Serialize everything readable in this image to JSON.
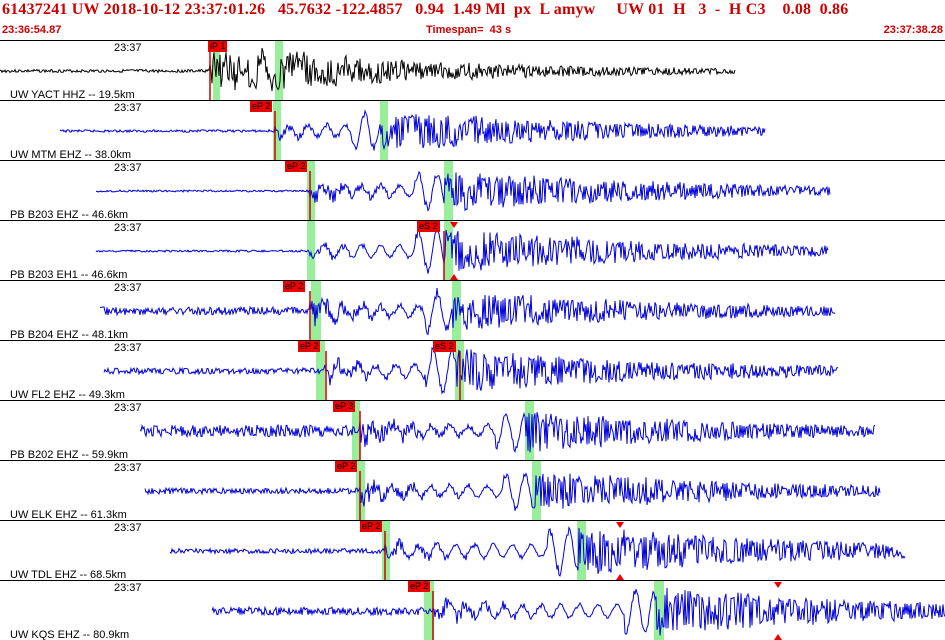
{
  "header": {
    "title": "61437241 UW 2018-10-12 23:37:01.26   45.7632 -122.4857   0.94  1.49 Ml  px  L amyw     UW 01  H   3  -  H C3    0.08  0.86",
    "start_time": "23:36:54.87",
    "timespan": "Timespan=  43 s",
    "end_time": "23:37:38.28"
  },
  "colors": {
    "header_text": "#cc0000",
    "trace_first": "#000000",
    "trace": "#0000dd",
    "pick_box": "#ee0000",
    "pick_line": "#cc0000",
    "window_shade": "#99ee99"
  },
  "traces": [
    {
      "time": "23:37",
      "label": "UW YACT HHZ -- 19.5km",
      "color": "black",
      "picks": [
        {
          "label": "iP 1"
        }
      ]
    },
    {
      "time": "23:37",
      "label": "UW MTM EHZ -- 38.0km",
      "color": "blue",
      "picks": [
        {
          "label": "eP 2"
        }
      ]
    },
    {
      "time": "23:37",
      "label": "PB B203 EHZ -- 46.6km",
      "color": "blue",
      "picks": [
        {
          "label": "eP 2"
        }
      ]
    },
    {
      "time": "23:37",
      "label": "PB B203 EH1 -- 46.6km",
      "color": "blue",
      "picks": [
        {
          "label": "eS 2"
        }
      ]
    },
    {
      "time": "23:37",
      "label": "PB B204 EHZ -- 48.1km",
      "color": "blue",
      "picks": [
        {
          "label": "eP 2"
        }
      ]
    },
    {
      "time": "23:37",
      "label": "UW FL2 EHZ -- 49.3km",
      "color": "blue",
      "picks": [
        {
          "label": "eP 2"
        },
        {
          "label": "eS 2"
        }
      ]
    },
    {
      "time": "23:37",
      "label": "PB B202 EHZ -- 59.9km",
      "color": "blue",
      "picks": [
        {
          "label": "eP 3"
        }
      ]
    },
    {
      "time": "23:37",
      "label": "UW ELK EHZ -- 61.3km",
      "color": "blue",
      "picks": [
        {
          "label": "eP 2"
        }
      ]
    },
    {
      "time": "23:37",
      "label": "UW TDL EHZ -- 68.5km",
      "color": "blue",
      "picks": [
        {
          "label": "eP 2"
        }
      ]
    },
    {
      "time": "23:37",
      "label": "UW KQS EHZ -- 80.9km",
      "color": "blue",
      "picks": [
        {
          "label": "eP 2"
        }
      ]
    }
  ]
}
